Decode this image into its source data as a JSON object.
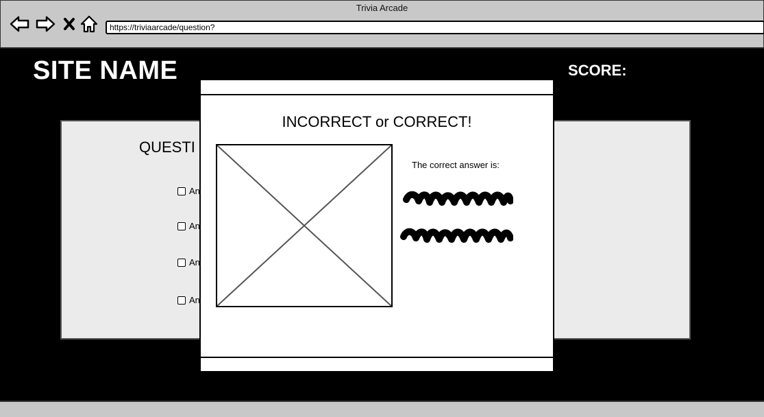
{
  "window": {
    "title": "Trivia Arcade",
    "url": "https://triviaarcade/question?"
  },
  "header": {
    "site_name": "SITE NAME",
    "score_label": "SCORE:"
  },
  "question": {
    "label": "QUESTI",
    "answers": [
      "An",
      "An",
      "An",
      "An"
    ]
  },
  "modal": {
    "title": "INCORRECT or CORRECT!",
    "caption": "The correct answer is:"
  },
  "icons": {
    "back": "back-arrow-icon",
    "forward": "forward-arrow-icon",
    "close": "close-icon",
    "home": "home-icon"
  }
}
